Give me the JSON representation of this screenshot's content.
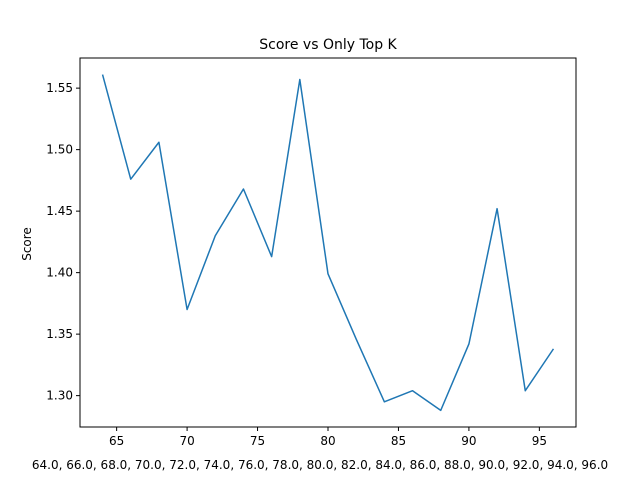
{
  "chart_data": {
    "type": "line",
    "title": "Score vs Only Top K",
    "xlabel": "64.0, 66.0, 68.0, 70.0, 72.0, 74.0, 76.0, 78.0, 80.0, 82.0, 84.0, 86.0, 88.0, 90.0, 92.0, 94.0, 96.0",
    "ylabel": "Score",
    "xlim": [
      62.4,
      97.6
    ],
    "ylim": [
      1.2745,
      1.5745
    ],
    "xticks": [
      65,
      70,
      75,
      80,
      85,
      90,
      95
    ],
    "yticks": [
      1.3,
      1.35,
      1.4,
      1.45,
      1.5,
      1.55
    ],
    "ytick_labels": [
      "1.30",
      "1.35",
      "1.40",
      "1.45",
      "1.50",
      "1.55"
    ],
    "grid": false,
    "line_color": "#1f77b4",
    "series": [
      {
        "x": [
          64,
          66,
          68,
          70,
          72,
          74,
          76,
          78,
          80,
          82,
          84,
          86,
          88,
          90,
          92,
          94,
          96
        ],
        "y": [
          1.561,
          1.476,
          1.506,
          1.37,
          1.43,
          1.468,
          1.413,
          1.557,
          1.399,
          1.346,
          1.295,
          1.304,
          1.288,
          1.342,
          1.452,
          1.304,
          1.338
        ]
      }
    ]
  }
}
